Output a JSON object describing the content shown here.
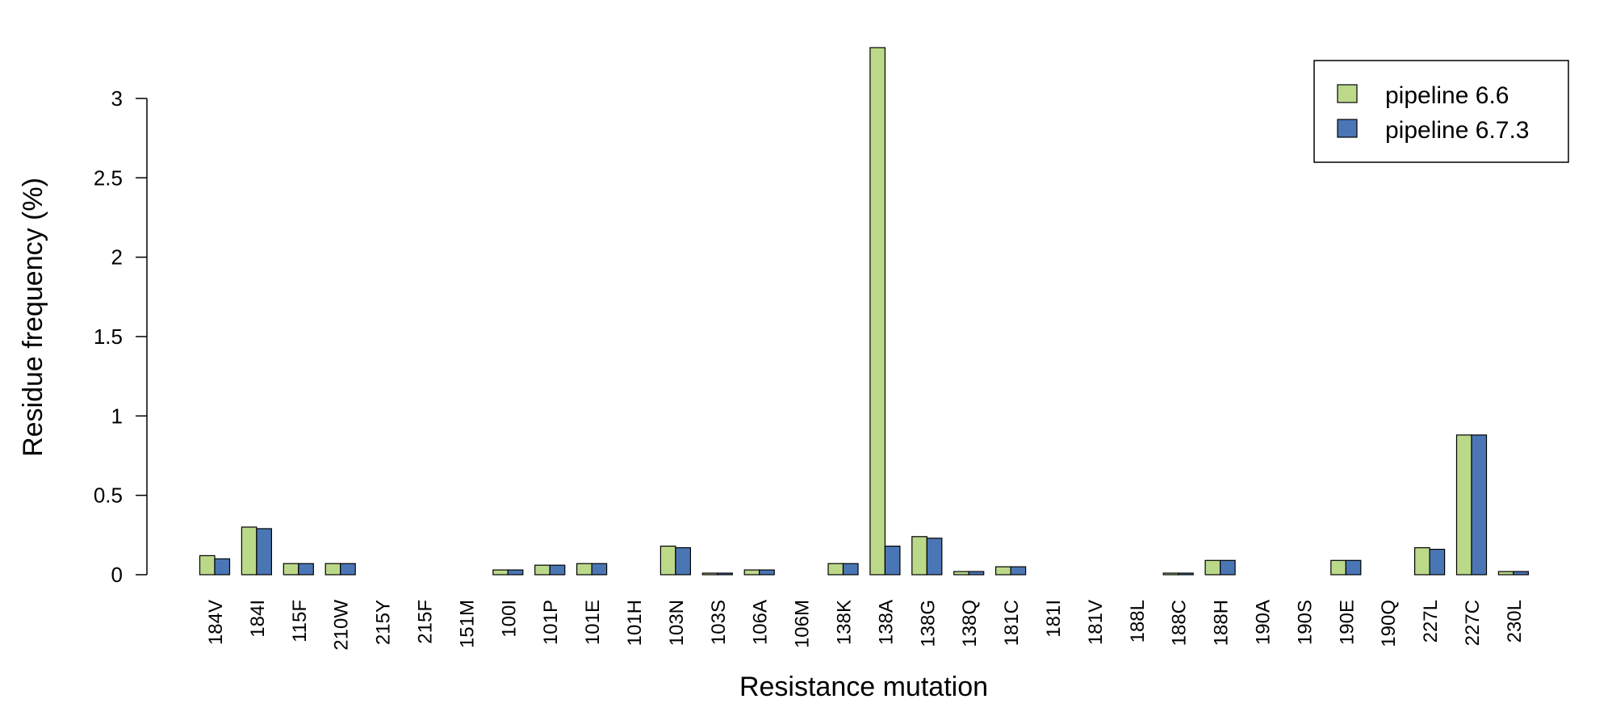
{
  "chart_data": {
    "type": "bar",
    "xlabel": "Resistance mutation",
    "ylabel": "Residue frequency (%)",
    "ylim": [
      0,
      3.32
    ],
    "yticks": [
      0,
      0.5,
      1,
      1.5,
      2,
      2.5,
      3
    ],
    "ytick_labels": [
      "0",
      "0.5",
      "1",
      "1.5",
      "2",
      "2.5",
      "3"
    ],
    "grid": false,
    "legend_position": "top-right",
    "categories": [
      "184V",
      "184I",
      "115F",
      "210W",
      "215Y",
      "215F",
      "151M",
      "100I",
      "101P",
      "101E",
      "101H",
      "103N",
      "103S",
      "106A",
      "106M",
      "138K",
      "138A",
      "138G",
      "138Q",
      "181C",
      "181I",
      "181V",
      "188L",
      "188C",
      "188H",
      "190A",
      "190S",
      "190E",
      "190Q",
      "227L",
      "227C",
      "230L"
    ],
    "series": [
      {
        "name": "pipeline 6.6",
        "color": "#bcd98a",
        "values": [
          0.12,
          0.3,
          0.07,
          0.07,
          0.0,
          0.0,
          0.0,
          0.03,
          0.06,
          0.07,
          0.0,
          0.18,
          0.01,
          0.03,
          0.0,
          0.07,
          3.32,
          0.24,
          0.02,
          0.05,
          0.0,
          0.0,
          0.0,
          0.01,
          0.09,
          0.0,
          0.0,
          0.09,
          0.0,
          0.17,
          0.88,
          0.02
        ]
      },
      {
        "name": "pipeline 6.7.3",
        "color": "#4b76b5",
        "values": [
          0.1,
          0.29,
          0.07,
          0.07,
          0.0,
          0.0,
          0.0,
          0.03,
          0.06,
          0.07,
          0.0,
          0.17,
          0.01,
          0.03,
          0.0,
          0.07,
          0.18,
          0.23,
          0.02,
          0.05,
          0.0,
          0.0,
          0.0,
          0.01,
          0.09,
          0.0,
          0.0,
          0.09,
          0.0,
          0.16,
          0.88,
          0.02
        ]
      }
    ]
  }
}
